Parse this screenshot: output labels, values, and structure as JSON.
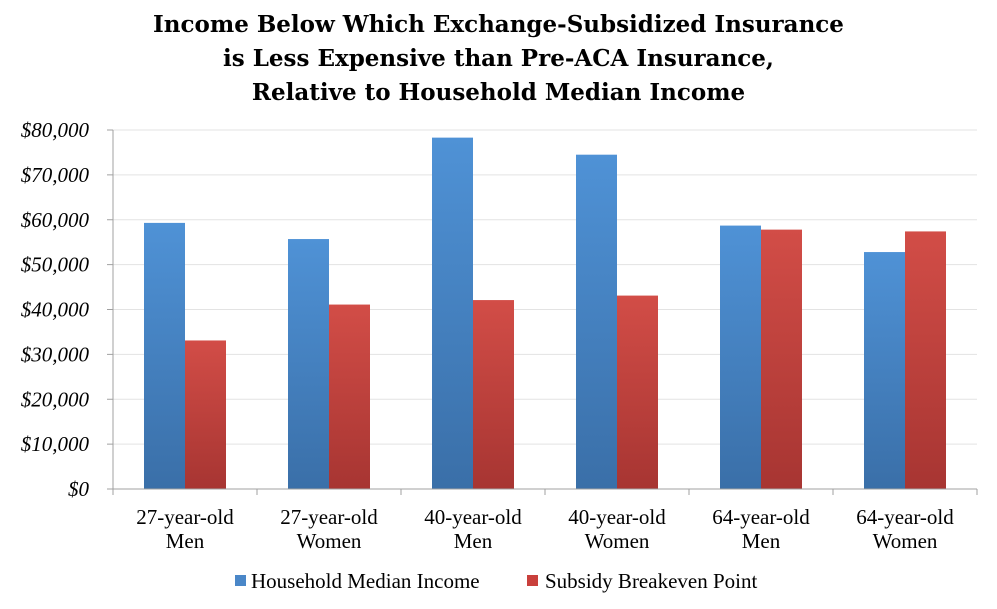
{
  "chart_data": {
    "type": "bar",
    "title_lines": [
      "Income Below Which Exchange-Subsidized Insurance",
      "is Less Expensive than Pre-ACA Insurance,",
      "Relative to Household Median Income"
    ],
    "categories": [
      [
        "27-year-old",
        "Men"
      ],
      [
        "27-year-old",
        "Women"
      ],
      [
        "40-year-old",
        "Men"
      ],
      [
        "40-year-old",
        "Women"
      ],
      [
        "64-year-old",
        "Men"
      ],
      [
        "64-year-old",
        "Women"
      ]
    ],
    "series": [
      {
        "name": "Household Median Income",
        "color": "#4a87c8",
        "values": [
          59300,
          55700,
          78300,
          74500,
          58700,
          52800
        ]
      },
      {
        "name": "Subsidy Breakeven Point",
        "color": "#c9403c",
        "values": [
          33100,
          41100,
          42100,
          43100,
          57800,
          57400
        ]
      }
    ],
    "ylim": [
      0,
      80000
    ],
    "yticks": [
      0,
      10000,
      20000,
      30000,
      40000,
      50000,
      60000,
      70000,
      80000
    ],
    "ytick_labels": [
      "$0",
      "$10,000",
      "$20,000",
      "$30,000",
      "$40,000",
      "$50,000",
      "$60,000",
      "$70,000",
      "$80,000"
    ],
    "grid": true,
    "legend_position": "bottom"
  }
}
